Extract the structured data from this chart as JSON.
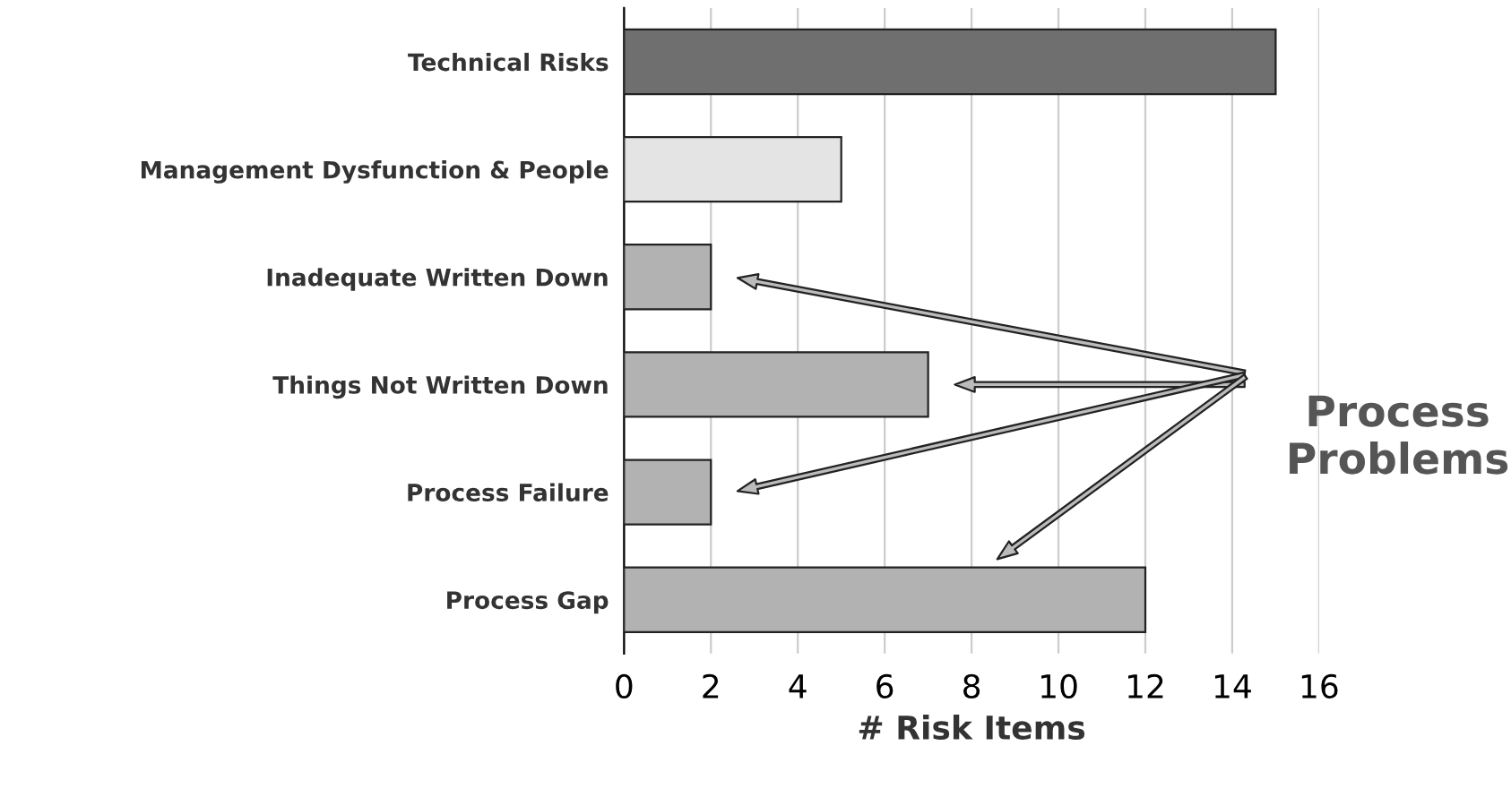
{
  "chart_data": {
    "type": "bar",
    "orientation": "horizontal",
    "categories": [
      "Technical Risks",
      "Management Dysfunction & People",
      "Inadequate Written Down",
      "Things Not Written Down",
      "Process Failure",
      "Process Gap"
    ],
    "values": [
      15,
      5,
      2,
      7,
      2,
      12
    ],
    "colors": [
      "#6f6f6f",
      "#e4e4e4",
      "#b2b2b2",
      "#b2b2b2",
      "#b2b2b2",
      "#b2b2b2"
    ],
    "xlabel": "# Risk Items",
    "xlim": [
      0,
      16
    ],
    "xticks": [
      0,
      2,
      4,
      6,
      8,
      10,
      12,
      14,
      16
    ],
    "grid": "x",
    "annotations": [
      "Process\nProblems"
    ]
  }
}
